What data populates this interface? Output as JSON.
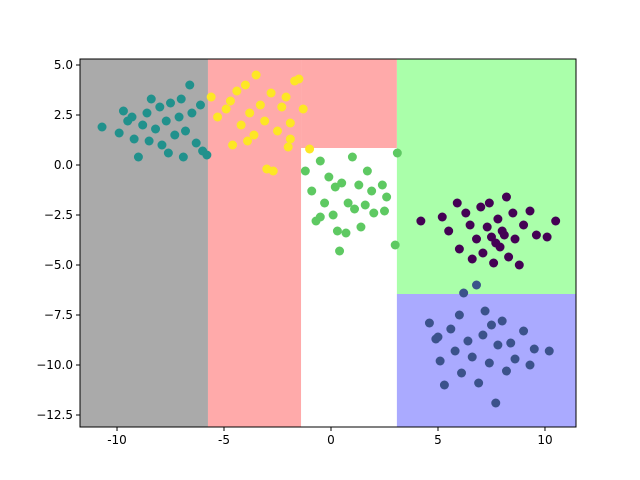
{
  "chart_data": {
    "type": "scatter",
    "xlim": [
      -11.73,
      11.45
    ],
    "ylim": [
      -13.1,
      5.3
    ],
    "xticks": [
      -10,
      -5,
      0,
      5,
      10
    ],
    "yticks": [
      {
        "value": 5.0,
        "label": "5.0"
      },
      {
        "value": 2.5,
        "label": "2.5"
      },
      {
        "value": 0.0,
        "label": "0.0"
      },
      {
        "value": -2.5,
        "label": "−2.5"
      },
      {
        "value": -5.0,
        "label": "−5.0"
      },
      {
        "value": -7.5,
        "label": "−7.5"
      },
      {
        "value": -10.0,
        "label": "−10.0"
      },
      {
        "value": -12.5,
        "label": "−12.5"
      }
    ],
    "regions": [
      {
        "color": "#aaaaaa",
        "xlim": [
          -11.73,
          -5.75
        ],
        "ylim": [
          -13.1,
          5.3
        ]
      },
      {
        "color": "#ffaaaa",
        "xlim": [
          -5.75,
          -1.4
        ],
        "ylim": [
          -13.1,
          5.3
        ]
      },
      {
        "color": "#ffaaaa",
        "xlim": [
          -1.4,
          3.08
        ],
        "ylim": [
          0.85,
          5.3
        ]
      },
      {
        "color": "#aaffaa",
        "xlim": [
          3.08,
          11.45
        ],
        "ylim": [
          -6.45,
          5.3
        ]
      },
      {
        "color": "#aaaaff",
        "xlim": [
          3.08,
          11.45
        ],
        "ylim": [
          -13.1,
          -6.45
        ]
      }
    ],
    "series": [
      {
        "color": "#21918c",
        "x": [
          -10.7,
          -9.9,
          -9.7,
          -9.5,
          -9.2,
          -9.0,
          -8.8,
          -8.6,
          -8.4,
          -8.2,
          -8.0,
          -7.9,
          -7.7,
          -7.5,
          -7.3,
          -7.1,
          -7.0,
          -6.8,
          -6.6,
          -6.5,
          -6.3,
          -6.1,
          -6.0,
          -5.8,
          -8.5,
          -7.6,
          -9.3,
          -6.9
        ],
        "y": [
          1.9,
          1.6,
          2.7,
          2.2,
          1.3,
          0.4,
          2.0,
          2.6,
          3.3,
          1.8,
          2.9,
          1.0,
          2.2,
          3.1,
          1.5,
          2.4,
          3.3,
          1.7,
          4.0,
          2.6,
          1.1,
          3.0,
          0.7,
          0.5,
          1.2,
          0.6,
          2.4,
          0.4
        ]
      },
      {
        "color": "#fde725",
        "x": [
          -5.6,
          -5.3,
          -4.9,
          -4.6,
          -4.4,
          -4.2,
          -4.0,
          -3.8,
          -3.6,
          -3.5,
          -3.3,
          -3.1,
          -3.0,
          -2.8,
          -2.7,
          -2.5,
          -2.3,
          -2.1,
          -1.9,
          -1.7,
          -1.5,
          -1.3,
          -2.0,
          -3.9,
          -1.9,
          -1.0,
          -4.7
        ],
        "y": [
          3.4,
          2.4,
          2.8,
          1.0,
          3.7,
          2.0,
          4.0,
          2.6,
          1.5,
          4.5,
          3.0,
          2.2,
          -0.2,
          3.6,
          -0.3,
          1.7,
          2.9,
          3.4,
          1.3,
          4.2,
          4.3,
          2.8,
          0.9,
          1.2,
          2.1,
          0.8,
          3.2
        ]
      },
      {
        "color": "#5ec962",
        "x": [
          -1.2,
          -0.9,
          -0.7,
          -0.5,
          -0.3,
          -0.1,
          0.1,
          0.2,
          0.4,
          0.5,
          0.7,
          0.8,
          1.0,
          1.1,
          1.3,
          1.4,
          1.6,
          1.7,
          1.9,
          2.0,
          2.4,
          2.6,
          2.5,
          3.1,
          3.0,
          -0.5,
          0.3
        ],
        "y": [
          -0.3,
          -1.3,
          -2.8,
          0.2,
          -1.9,
          -0.6,
          -2.5,
          -1.1,
          -4.3,
          -0.9,
          -3.4,
          -1.9,
          0.4,
          -2.2,
          -1.0,
          -3.1,
          -2.0,
          -0.3,
          -1.3,
          -2.4,
          -1.0,
          -1.6,
          -2.3,
          0.6,
          -4.0,
          -2.6,
          -3.3
        ]
      },
      {
        "color": "#440154",
        "x": [
          4.2,
          5.2,
          5.5,
          5.9,
          6.0,
          6.3,
          6.5,
          6.6,
          6.8,
          7.0,
          7.1,
          7.3,
          7.4,
          7.5,
          7.6,
          7.8,
          7.9,
          8.0,
          8.2,
          8.3,
          8.5,
          8.6,
          8.8,
          9.0,
          9.3,
          9.6,
          10.1,
          10.5,
          7.7,
          8.1
        ],
        "y": [
          -2.8,
          -2.6,
          -3.3,
          -1.9,
          -4.2,
          -2.4,
          -3.0,
          -4.7,
          -3.7,
          -2.1,
          -4.4,
          -3.1,
          -1.9,
          -3.6,
          -4.9,
          -2.7,
          -4.1,
          -3.3,
          -1.6,
          -4.6,
          -2.4,
          -3.7,
          -5.0,
          -3.0,
          -2.3,
          -3.5,
          -3.6,
          -2.8,
          -3.9,
          -3.5
        ]
      },
      {
        "color": "#3b528b",
        "x": [
          4.6,
          4.9,
          5.1,
          5.3,
          5.6,
          5.8,
          6.0,
          6.1,
          6.2,
          6.4,
          6.6,
          6.8,
          6.9,
          7.1,
          7.2,
          7.4,
          7.5,
          7.7,
          7.8,
          8.0,
          8.2,
          8.4,
          8.6,
          9.0,
          9.3,
          9.5,
          10.2,
          5.0
        ],
        "y": [
          -7.9,
          -8.7,
          -9.8,
          -11.0,
          -8.2,
          -9.3,
          -7.5,
          -10.4,
          -6.4,
          -8.8,
          -9.6,
          -6.0,
          -10.9,
          -8.5,
          -7.3,
          -9.9,
          -8.0,
          -11.9,
          -9.0,
          -7.8,
          -10.3,
          -8.9,
          -9.7,
          -8.3,
          -10.0,
          -9.2,
          -9.3,
          -8.6
        ]
      }
    ]
  }
}
